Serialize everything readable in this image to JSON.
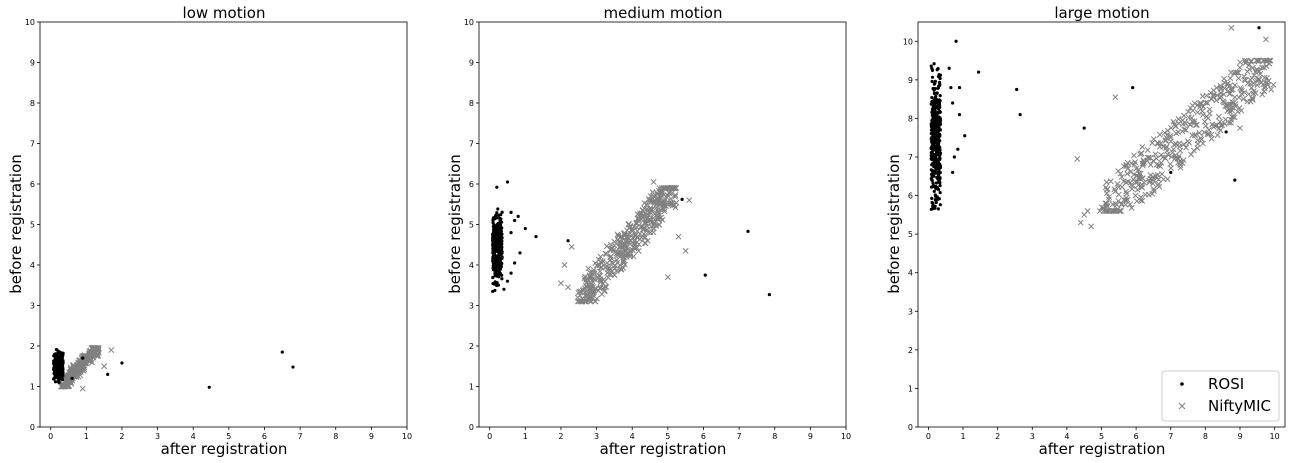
{
  "chart_data": [
    {
      "type": "scatter",
      "title": "low motion",
      "xlabel": "after registration",
      "ylabel": "before registration",
      "xlim": [
        -0.3,
        10
      ],
      "ylim": [
        0,
        10
      ],
      "xticks": [
        "0",
        "1",
        "2",
        "3",
        "4",
        "5",
        "6",
        "7",
        "8",
        "9",
        "10"
      ],
      "yticks": [
        "0",
        "1",
        "2",
        "3",
        "4",
        "5",
        "6",
        "7",
        "8",
        "9",
        "10"
      ],
      "clusters": [
        {
          "series": "ROSI",
          "x_range": [
            0.08,
            0.35
          ],
          "y_range": [
            1.0,
            2.0
          ],
          "count": 220
        },
        {
          "series": "NiftyMIC",
          "x_range": [
            0.3,
            1.3
          ],
          "y_range": [
            1.0,
            1.95
          ],
          "count": 250,
          "y_trend": true
        }
      ],
      "series": [
        {
          "name": "ROSI",
          "marker": "dot",
          "color": "#000000",
          "points": [
            [
              2.0,
              1.58
            ],
            [
              1.6,
              1.3
            ],
            [
              4.45,
              0.98
            ],
            [
              6.5,
              1.85
            ],
            [
              6.8,
              1.48
            ],
            [
              0.9,
              1.7
            ],
            [
              0.6,
              1.2
            ]
          ]
        },
        {
          "name": "NiftyMIC",
          "marker": "x",
          "color": "#808080",
          "points": [
            [
              1.7,
              1.9
            ],
            [
              1.5,
              1.5
            ],
            [
              1.3,
              1.75
            ],
            [
              0.9,
              0.95
            ]
          ]
        }
      ]
    },
    {
      "type": "scatter",
      "title": "medium motion",
      "xlabel": "after registration",
      "ylabel": "before registration",
      "xlim": [
        -0.3,
        10
      ],
      "ylim": [
        0,
        10
      ],
      "xticks": [
        "0",
        "1",
        "2",
        "3",
        "4",
        "5",
        "6",
        "7",
        "8",
        "9",
        "10"
      ],
      "yticks": [
        "0",
        "1",
        "2",
        "3",
        "4",
        "5",
        "6",
        "7",
        "8",
        "9",
        "10"
      ],
      "clusters": [
        {
          "series": "ROSI",
          "x_range": [
            0.08,
            0.35
          ],
          "y_range": [
            3.1,
            5.7
          ],
          "count": 280
        },
        {
          "series": "NiftyMIC",
          "x_range": [
            2.5,
            5.2
          ],
          "y_range": [
            3.1,
            5.9
          ],
          "count": 420,
          "y_trend": true
        }
      ],
      "series": [
        {
          "name": "ROSI",
          "marker": "dot",
          "color": "#000000",
          "points": [
            [
              0.2,
              5.92
            ],
            [
              0.5,
              6.05
            ],
            [
              0.6,
              5.3
            ],
            [
              0.7,
              5.1
            ],
            [
              0.8,
              5.2
            ],
            [
              0.6,
              4.8
            ],
            [
              1.0,
              4.9
            ],
            [
              1.3,
              4.7
            ],
            [
              0.85,
              4.3
            ],
            [
              0.6,
              3.8
            ],
            [
              0.5,
              3.6
            ],
            [
              0.7,
              4.05
            ],
            [
              0.4,
              3.4
            ],
            [
              2.2,
              4.6
            ],
            [
              5.4,
              5.62
            ],
            [
              6.05,
              3.75
            ],
            [
              7.25,
              4.83
            ],
            [
              7.85,
              3.27
            ]
          ]
        },
        {
          "name": "NiftyMIC",
          "marker": "x",
          "color": "#808080",
          "points": [
            [
              2.0,
              3.55
            ],
            [
              2.2,
              3.45
            ],
            [
              2.1,
              4.0
            ],
            [
              2.3,
              4.45
            ],
            [
              4.6,
              6.05
            ],
            [
              5.3,
              4.7
            ],
            [
              5.5,
              4.35
            ],
            [
              5.0,
              3.7
            ],
            [
              5.6,
              5.6
            ]
          ]
        }
      ]
    },
    {
      "type": "scatter",
      "title": "large motion",
      "xlabel": "after registration",
      "ylabel": "before registration",
      "xlim": [
        -0.3,
        10.3
      ],
      "ylim": [
        0,
        10.5
      ],
      "xticks": [
        "0",
        "1",
        "2",
        "3",
        "4",
        "5",
        "6",
        "7",
        "8",
        "9",
        "10"
      ],
      "yticks": [
        "0",
        "1",
        "2",
        "3",
        "4",
        "5",
        "6",
        "7",
        "8",
        "9",
        "10"
      ],
      "legend": "lower-right",
      "clusters": [
        {
          "series": "ROSI",
          "x_range": [
            0.08,
            0.35
          ],
          "y_range": [
            5.2,
            9.8
          ],
          "count": 380
        },
        {
          "series": "NiftyMIC",
          "x_range": [
            5.0,
            9.9
          ],
          "y_range": [
            5.6,
            9.5
          ],
          "count": 420,
          "y_trend": true
        }
      ],
      "series": [
        {
          "name": "ROSI",
          "marker": "dot",
          "color": "#000000",
          "points": [
            [
              0.8,
              10.0
            ],
            [
              0.9,
              8.8
            ],
            [
              1.05,
              7.55
            ],
            [
              0.85,
              7.2
            ],
            [
              0.75,
              7.0
            ],
            [
              0.7,
              8.4
            ],
            [
              0.9,
              8.1
            ],
            [
              0.6,
              9.3
            ],
            [
              0.7,
              6.6
            ],
            [
              0.65,
              8.8
            ],
            [
              1.45,
              9.2
            ],
            [
              2.55,
              8.75
            ],
            [
              2.65,
              8.1
            ],
            [
              4.5,
              7.75
            ],
            [
              5.9,
              8.8
            ],
            [
              7.0,
              6.6
            ],
            [
              8.6,
              7.65
            ],
            [
              8.85,
              6.4
            ],
            [
              9.55,
              10.35
            ]
          ]
        },
        {
          "name": "NiftyMIC",
          "marker": "x",
          "color": "#808080",
          "points": [
            [
              4.3,
              6.95
            ],
            [
              4.5,
              5.5
            ],
            [
              4.7,
              5.2
            ],
            [
              4.4,
              5.3
            ],
            [
              4.6,
              5.6
            ],
            [
              5.4,
              8.55
            ],
            [
              8.75,
              10.35
            ],
            [
              9.75,
              10.05
            ],
            [
              9.9,
              8.75
            ],
            [
              9.55,
              9.0
            ],
            [
              9.0,
              7.75
            ],
            [
              9.7,
              8.7
            ]
          ]
        }
      ]
    }
  ],
  "legend": {
    "items": [
      {
        "label": "ROSI",
        "marker": "dot",
        "color": "#000000"
      },
      {
        "label": "NiftyMIC",
        "marker": "x",
        "color": "#808080"
      }
    ]
  }
}
